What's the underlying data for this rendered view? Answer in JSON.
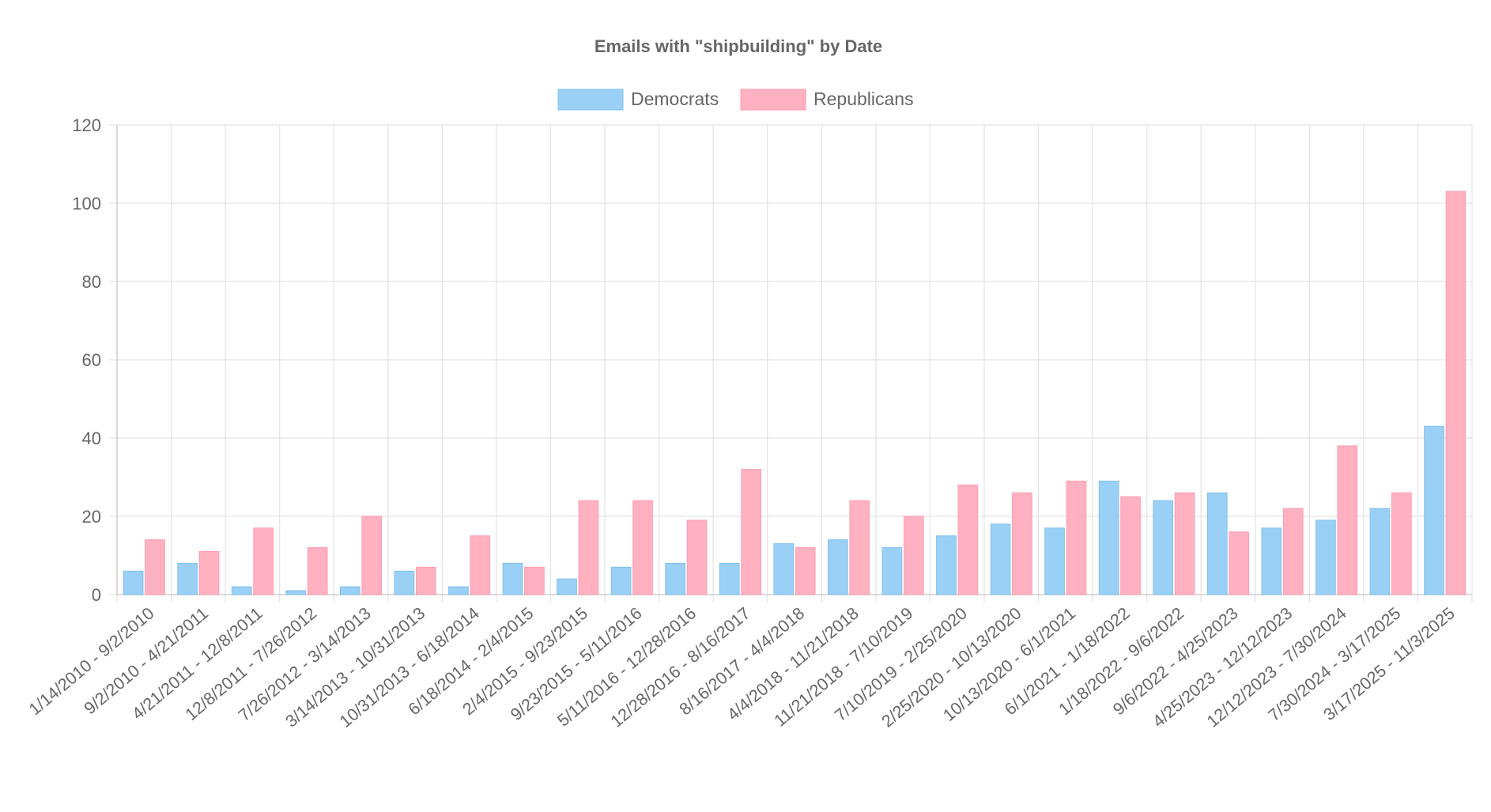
{
  "chart_data": {
    "type": "bar",
    "title": "Emails with \"shipbuilding\" by Date",
    "xlabel": "",
    "ylabel": "",
    "ylim": [
      0,
      120
    ],
    "yticks": [
      0,
      20,
      40,
      60,
      80,
      100,
      120
    ],
    "grid": true,
    "legend_position": "top",
    "categories": [
      "1/14/2010 - 9/2/2010",
      "9/2/2010 - 4/21/2011",
      "4/21/2011 - 12/8/2011",
      "12/8/2011 - 7/26/2012",
      "7/26/2012 - 3/14/2013",
      "3/14/2013 - 10/31/2013",
      "10/31/2013 - 6/18/2014",
      "6/18/2014 - 2/4/2015",
      "2/4/2015 - 9/23/2015",
      "9/23/2015 - 5/11/2016",
      "5/11/2016 - 12/28/2016",
      "12/28/2016 - 8/16/2017",
      "8/16/2017 - 4/4/2018",
      "4/4/2018 - 11/21/2018",
      "11/21/2018 - 7/10/2019",
      "7/10/2019 - 2/25/2020",
      "2/25/2020 - 10/13/2020",
      "10/13/2020 - 6/1/2021",
      "6/1/2021 - 1/18/2022",
      "1/18/2022 - 9/6/2022",
      "9/6/2022 - 4/25/2023",
      "4/25/2023 - 12/12/2023",
      "12/12/2023 - 7/30/2024",
      "7/30/2024 - 3/17/2025",
      "3/17/2025 - 11/3/2025"
    ],
    "series": [
      {
        "name": "Democrats",
        "color": "#9ad0f5",
        "border": "#7fc1ee",
        "values": [
          6,
          8,
          2,
          1,
          2,
          6,
          2,
          8,
          4,
          7,
          8,
          8,
          13,
          14,
          12,
          15,
          18,
          17,
          29,
          24,
          26,
          17,
          19,
          22,
          43
        ]
      },
      {
        "name": "Republicans",
        "color": "#ffb1c1",
        "border": "#ff9bb1",
        "values": [
          14,
          11,
          17,
          12,
          20,
          7,
          15,
          7,
          24,
          24,
          19,
          32,
          12,
          24,
          20,
          28,
          26,
          29,
          25,
          26,
          16,
          22,
          38,
          26,
          103
        ]
      }
    ]
  }
}
